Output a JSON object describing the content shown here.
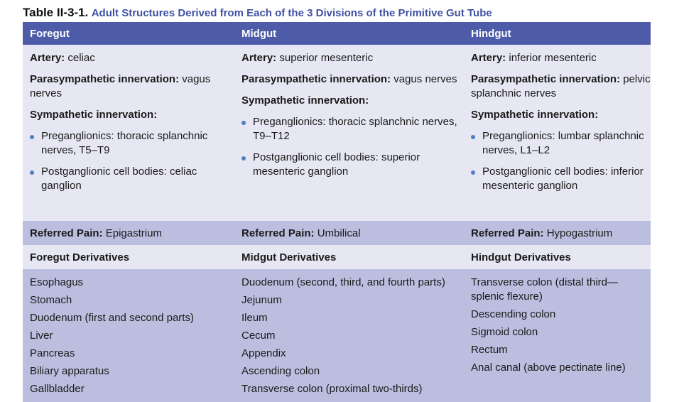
{
  "caption": {
    "number": "Table II-3-1.",
    "title": "Adult Structures Derived from Each of the 3 Divisions of the Primitive Gut Tube"
  },
  "headers": [
    "Foregut",
    "Midgut",
    "Hindgut"
  ],
  "labels": {
    "artery": "Artery:",
    "parasym": "Parasympathetic innervation:",
    "sym": "Sympathetic innervation:",
    "pregang": "Preganglionics:",
    "postgang": "Postganglionic cell bodies:",
    "referred": "Referred Pain:"
  },
  "columns": [
    {
      "artery": "celiac",
      "parasym": "vagus nerves",
      "pregang": "thoracic splanchnic nerves, T5–T9",
      "postgang": "celiac ganglion",
      "referred": "Epigastrium",
      "deriv_title": "Foregut Derivatives",
      "derivatives": [
        "Esophagus",
        "Stomach",
        "Duodenum (first and second parts)",
        "Liver",
        "Pancreas",
        "Biliary apparatus",
        "Gallbladder"
      ]
    },
    {
      "artery": "superior mesenteric",
      "parasym": "vagus nerves",
      "pregang": "thoracic splanchnic nerves, T9–T12",
      "postgang": "superior mesenteric ganglion",
      "referred": "Umbilical",
      "deriv_title": "Midgut Derivatives",
      "derivatives": [
        "Duodenum (second, third, and fourth parts)",
        "Jejunum",
        "Ileum",
        "Cecum",
        "Appendix",
        "Ascending colon",
        "Transverse colon (proximal two-thirds)"
      ]
    },
    {
      "artery": "inferior mesenteric",
      "parasym": "pelvic splanchnic nerves",
      "pregang": "lumbar splanchnic nerves, L1–L2",
      "postgang": "inferior mesenteric ganglion",
      "referred": "Hypogastrium",
      "deriv_title": "Hindgut Derivatives",
      "derivatives": [
        "Transverse colon (distal third—splenic flexure)",
        "Descending colon",
        "Sigmoid colon",
        "Rectum",
        "Anal canal (above pectinate line)"
      ]
    }
  ],
  "colors": {
    "header_bg": "#4e5ba8",
    "light_row": "#e6e7f3",
    "dark_row": "#bcbedf",
    "caption_title": "#3f51a3",
    "bullet": "#4f7ec2"
  }
}
